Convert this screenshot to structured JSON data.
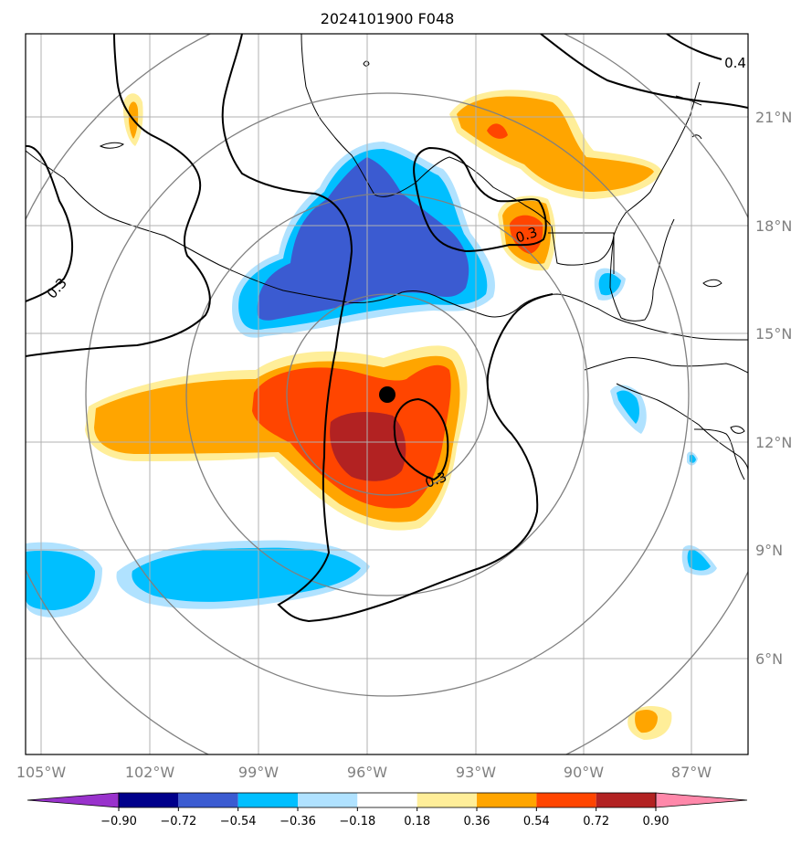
{
  "map": {
    "title": "2024101900 F048",
    "longitude_labels": [
      "105°W",
      "102°W",
      "99°W",
      "96°W",
      "93°W",
      "90°W",
      "87°W"
    ],
    "latitude_labels": [
      "21°N",
      "18°N",
      "15°N",
      "12°N",
      "9°N",
      "6°N"
    ],
    "contour_labels": [
      "0.4",
      "0.3",
      "0.3",
      "0.3"
    ],
    "center_marker": "storm-center-dot",
    "colors": {
      "purple": "#9932cc",
      "navy": "#00008b",
      "royal_blue": "#3b5bd1",
      "deep_sky_blue": "#00bfff",
      "light_sky_blue": "#b0e2ff",
      "white": "#ffffff",
      "khaki": "#ffee99",
      "orange": "#ffa500",
      "orange_red": "#ff4500",
      "firebrick": "#b22222",
      "pink": "#ff88aa",
      "grid": "#b0b0b0",
      "range_rings": "#808080"
    }
  },
  "colorbar": {
    "tick_labels": [
      "−0.90",
      "−0.72",
      "−0.54",
      "−0.36",
      "−0.18",
      "0.18",
      "0.36",
      "0.54",
      "0.72",
      "0.90"
    ],
    "bins": [
      {
        "color": "#9932cc"
      },
      {
        "color": "#00008b"
      },
      {
        "color": "#3b5bd1"
      },
      {
        "color": "#00bfff"
      },
      {
        "color": "#b0e2ff"
      },
      {
        "color": "#ffffff"
      },
      {
        "color": "#ffee99"
      },
      {
        "color": "#ffa500"
      },
      {
        "color": "#ff4500"
      },
      {
        "color": "#b22222"
      },
      {
        "color": "#ff88aa"
      }
    ]
  }
}
